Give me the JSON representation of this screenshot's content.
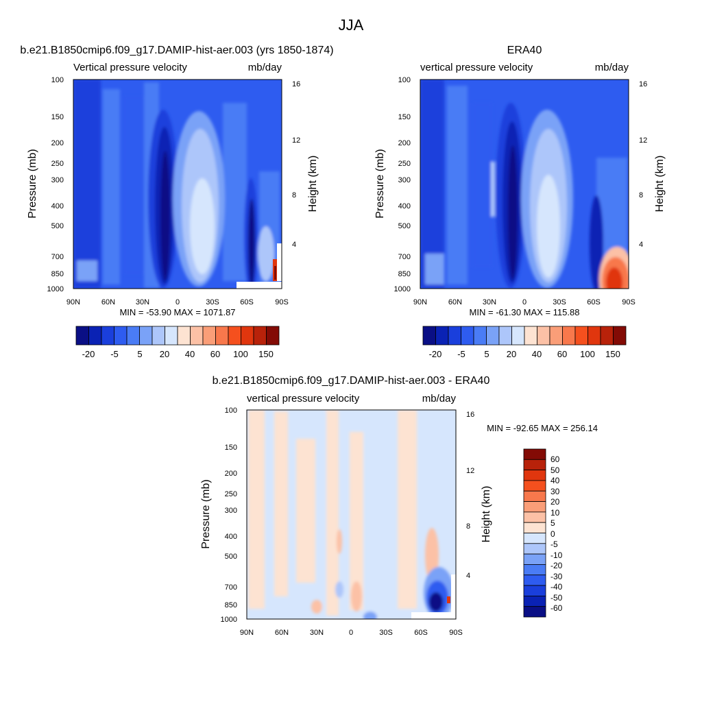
{
  "figure_title": "JJA",
  "colors": {
    "main_scale": [
      "#0a0f85",
      "#0a22b4",
      "#1a3fdc",
      "#2e5cf0",
      "#4a7cf5",
      "#7aa2f7",
      "#adc6fa",
      "#d6e6fd",
      "#fde3d2",
      "#fcc1a6",
      "#fa9e78",
      "#f8784c",
      "#f5501e",
      "#e0360e",
      "#b8220a",
      "#830b05"
    ],
    "diff_scale": [
      "#0a0f85",
      "#0a22b4",
      "#1a3fdc",
      "#2e5cf0",
      "#4a7cf5",
      "#7aa2f7",
      "#adc6fa",
      "#d6e6fd",
      "#fde3d2",
      "#fcc1a6",
      "#fa9e78",
      "#f8784c",
      "#f5501e",
      "#e0360e",
      "#b8220a",
      "#830b05"
    ]
  },
  "chart_data": [
    {
      "type": "heatmap",
      "title": "b.e21.B1850cmip6.f09_g17.DAMIP-hist-aer.003 (yrs 1850-1874)",
      "subtitle_left": "Vertical pressure velocity",
      "subtitle_right": "mb/day",
      "xlabel": "",
      "ylabel": "Pressure (mb)",
      "y2label": "Height (km)",
      "x_ticks": [
        "90N",
        "60N",
        "30N",
        "0",
        "30S",
        "60S",
        "90S"
      ],
      "y_ticks": [
        "100",
        "150",
        "200",
        "250",
        "300",
        "400",
        "500",
        "700",
        "850",
        "1000"
      ],
      "y2_ticks": [
        "16",
        "12",
        "8",
        "4"
      ],
      "stats": "MIN = -53.90  MAX = 1071.87",
      "colorbar_labels": [
        "-20",
        "-5",
        "5",
        "20",
        "40",
        "60",
        "100",
        "150"
      ]
    },
    {
      "type": "heatmap",
      "title": "ERA40",
      "subtitle_left": "vertical pressure velocity",
      "subtitle_right": "mb/day",
      "xlabel": "",
      "ylabel": "Pressure (mb)",
      "y2label": "Height (km)",
      "x_ticks": [
        "90N",
        "60N",
        "30N",
        "0",
        "30S",
        "60S",
        "90S"
      ],
      "y_ticks": [
        "100",
        "150",
        "200",
        "250",
        "300",
        "400",
        "500",
        "700",
        "850",
        "1000"
      ],
      "y2_ticks": [
        "16",
        "12",
        "8",
        "4"
      ],
      "stats": "MIN = -61.30  MAX = 115.88",
      "colorbar_labels": [
        "-20",
        "-5",
        "5",
        "20",
        "40",
        "60",
        "100",
        "150"
      ]
    },
    {
      "type": "heatmap",
      "title": "b.e21.B1850cmip6.f09_g17.DAMIP-hist-aer.003 - ERA40",
      "subtitle_left": "vertical pressure velocity",
      "subtitle_right": "mb/day",
      "xlabel": "",
      "ylabel": "Pressure (mb)",
      "y2label": "Height (km)",
      "x_ticks": [
        "90N",
        "60N",
        "30N",
        "0",
        "30S",
        "60S",
        "90S"
      ],
      "y_ticks": [
        "100",
        "150",
        "200",
        "250",
        "300",
        "400",
        "500",
        "700",
        "850",
        "1000"
      ],
      "y2_ticks": [
        "16",
        "12",
        "8",
        "4"
      ],
      "stats": "MIN = -92.65  MAX = 256.14",
      "colorbar_labels": [
        "60",
        "50",
        "40",
        "30",
        "20",
        "10",
        "5",
        "0",
        "-5",
        "-10",
        "-20",
        "-30",
        "-40",
        "-50",
        "-60"
      ]
    }
  ]
}
